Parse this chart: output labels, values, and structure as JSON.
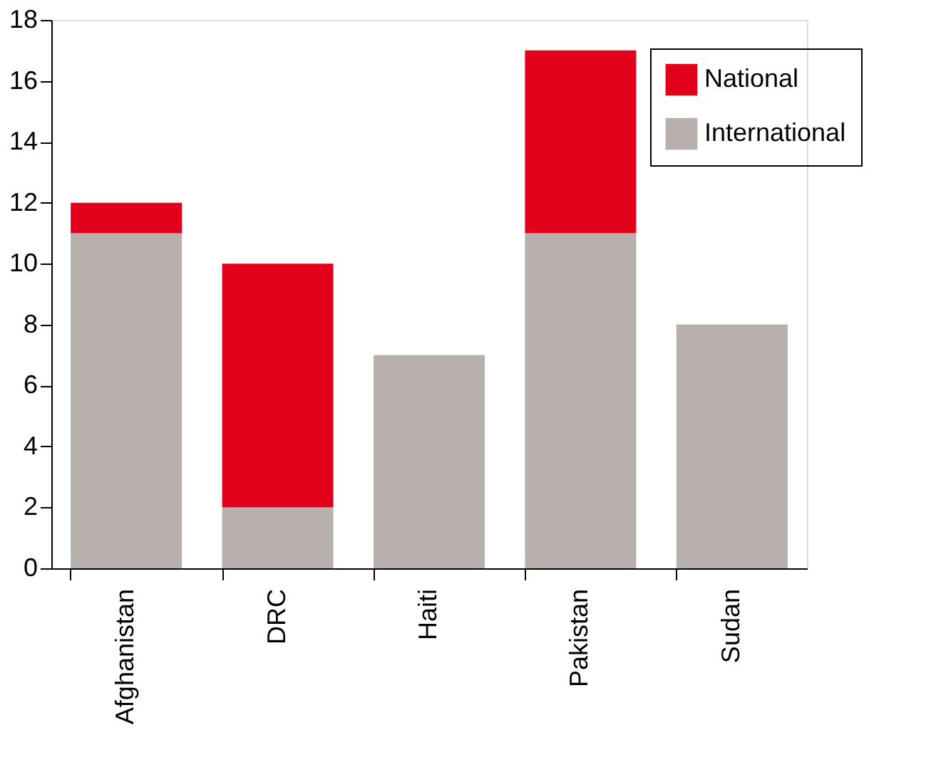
{
  "chart_data": {
    "type": "bar",
    "stacked": true,
    "categories": [
      "Afghanistan",
      "DRC",
      "Haiti",
      "Pakistan",
      "Sudan"
    ],
    "series": [
      {
        "name": "International",
        "color": "#b8b0ad",
        "values": [
          11,
          2,
          7,
          11,
          8
        ]
      },
      {
        "name": "National",
        "color": "#e2001a",
        "values": [
          1,
          8,
          0,
          6,
          0
        ]
      }
    ],
    "ylim": [
      0,
      18
    ],
    "yticks": [
      0,
      2,
      4,
      6,
      8,
      10,
      12,
      14,
      16,
      18
    ],
    "grid": false,
    "legend": "top right"
  }
}
